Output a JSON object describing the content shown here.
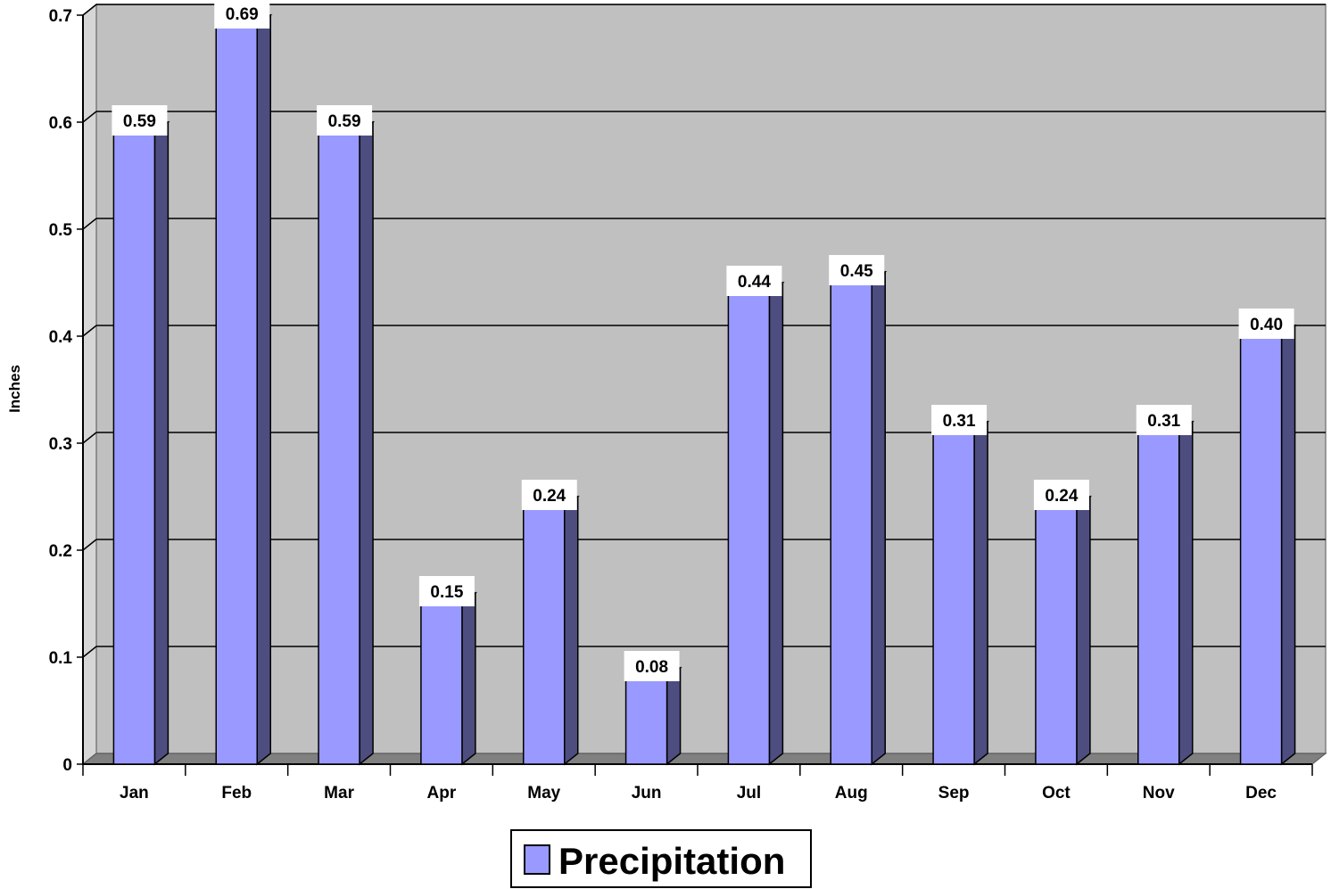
{
  "chart_data": {
    "type": "bar",
    "categories": [
      "Jan",
      "Feb",
      "Mar",
      "Apr",
      "May",
      "Jun",
      "Jul",
      "Aug",
      "Sep",
      "Oct",
      "Nov",
      "Dec"
    ],
    "series": [
      {
        "name": "Precipitation",
        "values": [
          0.59,
          0.69,
          0.59,
          0.15,
          0.24,
          0.08,
          0.44,
          0.45,
          0.31,
          0.24,
          0.31,
          0.4
        ],
        "labels": [
          "0.59",
          "0.69",
          "0.59",
          "0.15",
          "0.24",
          "0.08",
          "0.44",
          "0.45",
          "0.31",
          "0.24",
          "0.31",
          "0.40"
        ]
      }
    ],
    "ylabel": "Inches",
    "ylim": [
      0,
      0.7
    ],
    "yticks": [
      "0",
      "0.1",
      "0.2",
      "0.3",
      "0.4",
      "0.5",
      "0.6",
      "0.7"
    ],
    "grid": true,
    "legend_position": "bottom-center",
    "colors": {
      "bar_front": "#9999ff",
      "bar_side": "#4d4d80",
      "wall": "#c0c0c0",
      "floor": "#808080"
    }
  }
}
